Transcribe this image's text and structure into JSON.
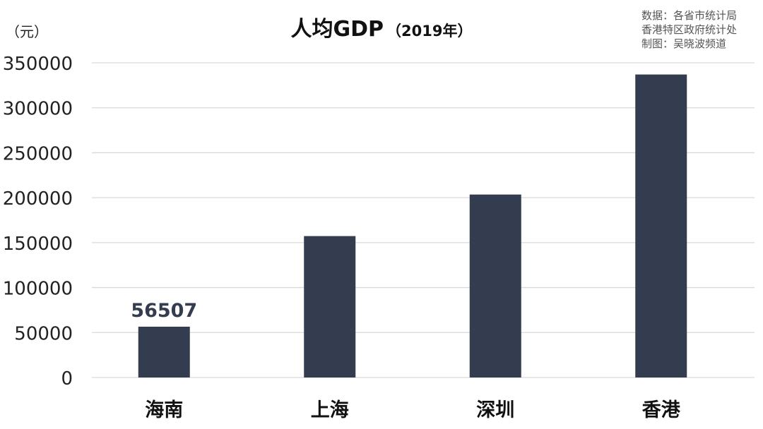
{
  "chart_data": {
    "type": "bar",
    "title": "人均GDP",
    "subtitle": "（2019年）",
    "ylabel": "（元）",
    "categories": [
      "海南",
      "上海",
      "深圳",
      "香港"
    ],
    "values": [
      56507,
      157279,
      203489,
      337000
    ],
    "data_labels": [
      {
        "category": "海南",
        "value": 56507,
        "text": "56507"
      }
    ],
    "ylim": [
      0,
      350000
    ],
    "yticks": [
      0,
      50000,
      100000,
      150000,
      200000,
      250000,
      300000,
      350000
    ],
    "ytick_labels": [
      "0",
      "50000",
      "100000",
      "150000",
      "200000",
      "250000",
      "300000",
      "350000"
    ],
    "grid": true,
    "legend": "none",
    "source_lines": [
      "数据：各省市统计局",
      "香港特区政府统计处",
      "制图：吴晓波频道"
    ],
    "colors": {
      "bar": "#333d4f",
      "grid": "#d9d9d9",
      "label": "#333d4f"
    }
  }
}
